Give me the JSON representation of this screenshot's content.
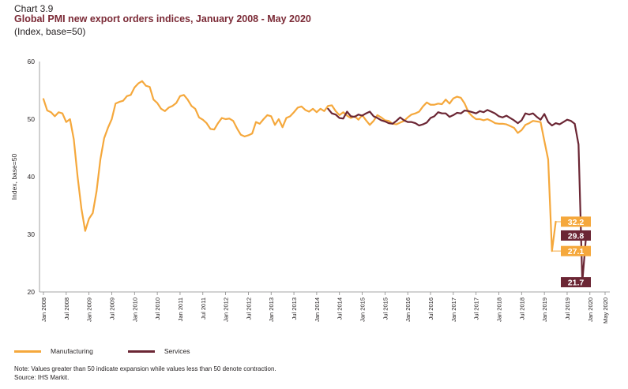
{
  "header": {
    "chart_number": "Chart 3.9",
    "title": "Global PMI new export orders indices, January 2008 - May 2020",
    "subtitle": "(Index, base=50)"
  },
  "colors": {
    "manufacturing": "#f5a83c",
    "services": "#6b2634",
    "axis": "#888888",
    "text": "#231f20"
  },
  "legend": {
    "manufacturing": "Manufacturing",
    "services": "Services"
  },
  "notes": {
    "note": "Note: Values greater than 50 indicate expansion while values less than 50 denote contraction.",
    "source": "Source: IHS Markit."
  },
  "chart_data": {
    "type": "line",
    "ylabel": "Index, base=50",
    "ylim": [
      20,
      60
    ],
    "yticks": [
      20,
      30,
      40,
      50,
      60
    ],
    "xticks": [
      "Jan 2008",
      "Jul 2008",
      "Jan 2009",
      "Jul 2009",
      "Jan 2010",
      "Jul 2010",
      "Jan 2011",
      "Jul 2011",
      "Jan 2012",
      "Jul 2012",
      "Jan 2013",
      "Jul 2013",
      "Jan 2014",
      "Jul 2014",
      "Jan 2015",
      "Jul 2015",
      "Jan 2016",
      "Jul 2016",
      "Jan 2017",
      "Jul 2017",
      "Jan 2018",
      "Jul 2018",
      "Jan 2019",
      "Jul 2019",
      "Jan 2020",
      "May 2020"
    ],
    "x_start": "2008-01",
    "x_end": "2020-05",
    "grid": false,
    "series": [
      {
        "name": "Manufacturing",
        "start": "2008-01",
        "values": [
          53.5,
          51.5,
          51.2,
          50.5,
          51.2,
          51,
          49.5,
          50,
          46.5,
          40,
          34.5,
          30.6,
          32.7,
          33.7,
          37.5,
          43,
          46.7,
          48.5,
          50,
          52.7,
          53,
          53.2,
          54,
          54.2,
          55.5,
          56.2,
          56.6,
          55.8,
          55.6,
          53.4,
          52.8,
          51.8,
          51.4,
          52,
          52.3,
          52.8,
          54,
          54.2,
          53.4,
          52.3,
          51.8,
          50.3,
          49.9,
          49.3,
          48.3,
          48.2,
          49.3,
          50.2,
          50,
          50.1,
          49.7,
          48.4,
          47.3,
          47,
          47.2,
          47.5,
          49.5,
          49.2,
          50,
          50.7,
          50.5,
          49,
          50,
          48.6,
          50.2,
          50.5,
          51.2,
          52,
          52.2,
          51.6,
          51.3,
          51.8,
          51.2,
          51.8,
          51.4,
          52.3,
          52.4,
          51.4,
          50.7,
          51.2,
          50.6,
          50.2,
          50.5,
          49.9,
          50.7,
          49.8,
          49,
          49.7,
          50.7,
          50.3,
          49.8,
          49.7,
          49.2,
          49.1,
          49.4,
          49.7,
          50.3,
          50.8,
          51,
          51.3,
          52.2,
          52.9,
          52.5,
          52.5,
          52.7,
          52.6,
          53.4,
          52.7,
          53.6,
          53.9,
          53.7,
          52.7,
          51.2,
          50.5,
          50,
          50,
          49.8,
          50,
          49.7,
          49.3,
          49.2,
          49.2,
          49.1,
          48.8,
          48.5,
          47.6,
          48.1,
          49,
          49.3,
          49.7,
          49.6,
          49.5,
          46.2,
          43,
          27.1,
          32.2
        ]
      },
      {
        "name": "Services",
        "start": "2014-04",
        "values": [
          51.8,
          51,
          50.8,
          50.2,
          50.1,
          51.3,
          50.5,
          50.4,
          50.8,
          50.6,
          51,
          51.3,
          50.5,
          50.2,
          49.8,
          49.6,
          49.3,
          49.2,
          49.7,
          50.3,
          49.8,
          49.5,
          49.5,
          49.3,
          48.9,
          49.1,
          49.4,
          50.2,
          50.5,
          51.2,
          51,
          51,
          50.4,
          50.7,
          51.1,
          51,
          51.5,
          51.4,
          51.2,
          51,
          51.4,
          51.2,
          51.6,
          51.3,
          51,
          50.5,
          50.3,
          50.6,
          50.2,
          49.8,
          49.3,
          49.8,
          51,
          50.8,
          51,
          50.4,
          49.9,
          50.9,
          49.5,
          48.9,
          49.3,
          49.1,
          49.5,
          49.9,
          49.7,
          49.2,
          45.6,
          21.7,
          29.8
        ]
      }
    ],
    "annotations": [
      {
        "label": "32.2",
        "series": "Manufacturing",
        "value": 32.2
      },
      {
        "label": "29.8",
        "series": "Services",
        "value": 29.8
      },
      {
        "label": "27.1",
        "series": "Manufacturing",
        "value": 27.1
      },
      {
        "label": "21.7",
        "series": "Services",
        "value": 21.7
      }
    ]
  }
}
